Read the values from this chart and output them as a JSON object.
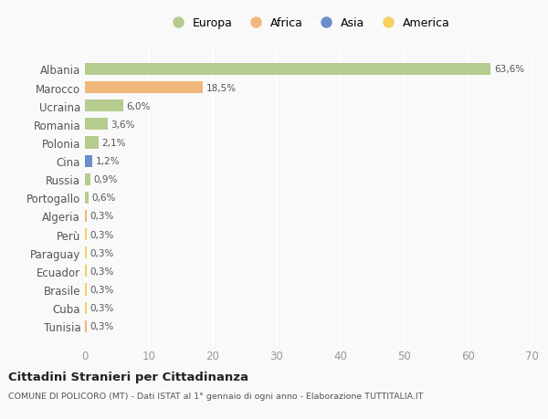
{
  "categories": [
    "Tunisia",
    "Cuba",
    "Brasile",
    "Ecuador",
    "Paraguay",
    "Perù",
    "Algeria",
    "Portogallo",
    "Russia",
    "Cina",
    "Polonia",
    "Romania",
    "Ucraina",
    "Marocco",
    "Albania"
  ],
  "values": [
    0.3,
    0.3,
    0.3,
    0.3,
    0.3,
    0.3,
    0.3,
    0.6,
    0.9,
    1.2,
    2.1,
    3.6,
    6.0,
    18.5,
    63.6
  ],
  "labels": [
    "0,3%",
    "0,3%",
    "0,3%",
    "0,3%",
    "0,3%",
    "0,3%",
    "0,3%",
    "0,6%",
    "0,9%",
    "1,2%",
    "2,1%",
    "3,6%",
    "6,0%",
    "18,5%",
    "63,6%"
  ],
  "continent_colors": {
    "Europa": "#b5cc8e",
    "Africa": "#f0b87a",
    "Asia": "#6b8ec8",
    "America": "#f5d060"
  },
  "continent_map": {
    "Albania": "Europa",
    "Marocco": "Africa",
    "Ucraina": "Europa",
    "Romania": "Europa",
    "Polonia": "Europa",
    "Cina": "Asia",
    "Russia": "Europa",
    "Portogallo": "Europa",
    "Algeria": "Africa",
    "Perù": "America",
    "Paraguay": "America",
    "Ecuador": "America",
    "Brasile": "America",
    "Cuba": "America",
    "Tunisia": "Africa"
  },
  "xlim": [
    0,
    70
  ],
  "xticks": [
    0,
    10,
    20,
    30,
    40,
    50,
    60,
    70
  ],
  "title1": "Cittadini Stranieri per Cittadinanza",
  "title2": "COMUNE DI POLICORO (MT) - Dati ISTAT al 1° gennaio di ogni anno - Elaborazione TUTTITALIA.IT",
  "bg_color": "#f9f9f9",
  "grid_color": "#ffffff",
  "bar_height": 0.65,
  "legend_order": [
    "Europa",
    "Africa",
    "Asia",
    "America"
  ]
}
